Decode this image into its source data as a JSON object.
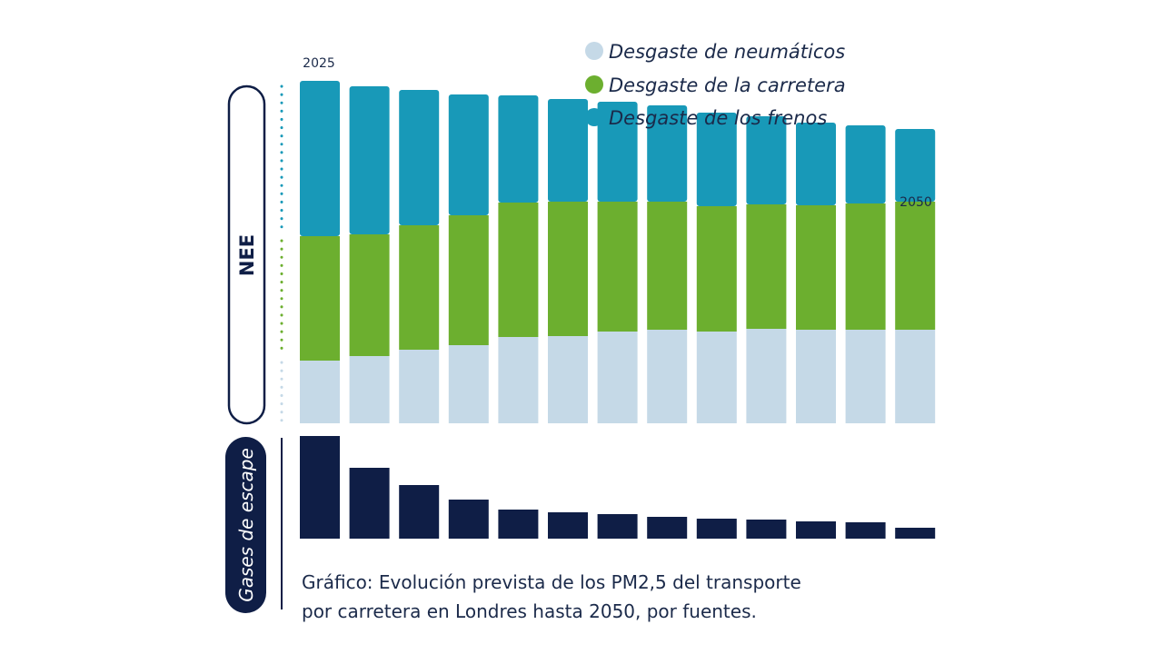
{
  "chart_data": {
    "type": "bar",
    "stacked": true,
    "categories": [
      "2025",
      "",
      "",
      "",
      "",
      "",
      "",
      "",
      "",
      "",
      "",
      "",
      "2050"
    ],
    "start_label": "2025",
    "end_label": "2050",
    "series": [
      {
        "name": "Desgaste de neumáticos",
        "group": "NEE",
        "color": "#c5d9e7",
        "values": [
          69,
          74,
          81,
          86,
          95,
          96,
          101,
          103,
          101,
          104,
          103,
          103,
          103
        ]
      },
      {
        "name": "Desgaste de la carretera",
        "group": "NEE",
        "color": "#6caf2f",
        "values": [
          137,
          134,
          137,
          143,
          148,
          148,
          143,
          141,
          138,
          137,
          137,
          139,
          141
        ]
      },
      {
        "name": "Desgaste de los frenos",
        "group": "NEE",
        "color": "#1899b8",
        "values": [
          171,
          163,
          149,
          133,
          118,
          113,
          110,
          106,
          103,
          97,
          91,
          86,
          80
        ]
      },
      {
        "name": "Gases de escape",
        "group": "Gases de escape",
        "color": "#0f1e46",
        "values": [
          113,
          78,
          59,
          43,
          32,
          29,
          27,
          24,
          22,
          21,
          19,
          18,
          12
        ]
      }
    ],
    "legend": [
      "Desgaste de neumáticos",
      "Desgaste de la carretera",
      "Desgaste de los frenos"
    ],
    "legend_position": "top-right",
    "group_labels": {
      "nee": "NEE",
      "exhaust": "Gases de escape"
    },
    "caption": [
      "Gráfico: Evolución prevista de los PM2,5 del transporte",
      "por carretera en Londres hasta 2050, por fuentes."
    ],
    "grid": false
  }
}
